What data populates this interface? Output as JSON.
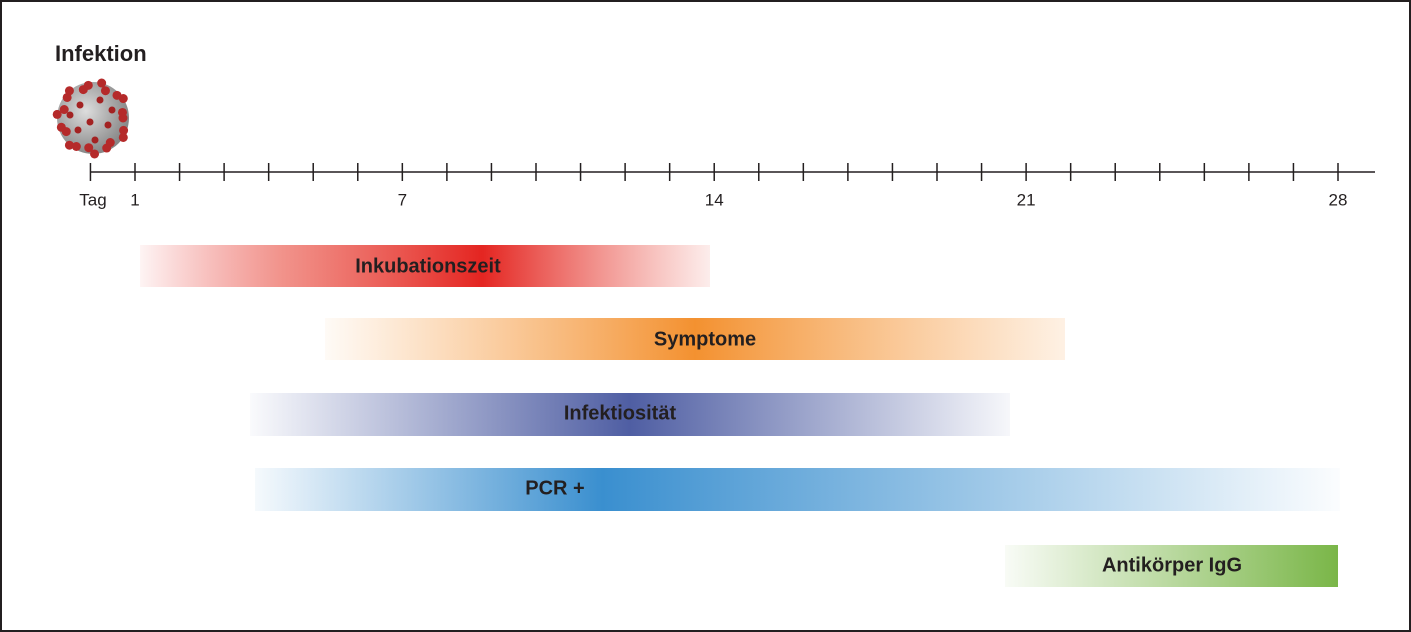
{
  "title": "Infektion",
  "axis": {
    "unit_label": "Tag",
    "ticks": [
      1,
      7,
      14,
      21,
      28
    ]
  },
  "bars": [
    {
      "label": "Inkubationszeit"
    },
    {
      "label": "Symptome"
    },
    {
      "label": "Infektiosität"
    },
    {
      "label": "PCR +"
    },
    {
      "label": "Antikörper IgG"
    }
  ]
}
